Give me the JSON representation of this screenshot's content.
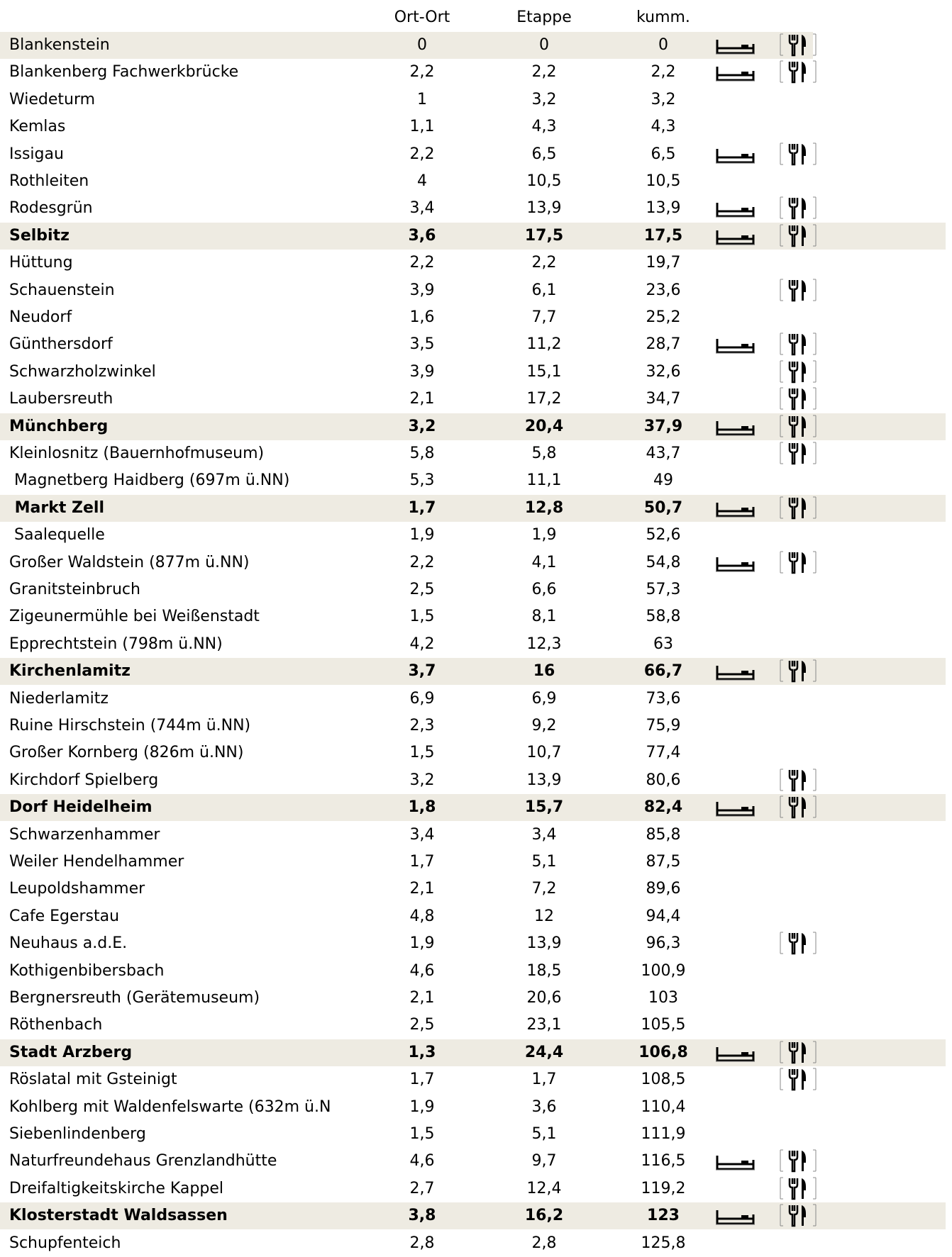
{
  "header": {
    "columns": [
      "Ort-Ort",
      "Etappe",
      "kumm."
    ]
  },
  "table": {
    "rows": [
      {
        "name": "Blankenstein",
        "ort_ort": "0",
        "etappe": "0",
        "kumm": "0",
        "highlight": true,
        "bold": false,
        "bed": true,
        "food": true
      },
      {
        "name": "Blankenberg Fachwerkbrücke",
        "ort_ort": "2,2",
        "etappe": "2,2",
        "kumm": "2,2",
        "highlight": false,
        "bold": false,
        "bed": true,
        "food": true
      },
      {
        "name": "Wiedeturm",
        "ort_ort": "1",
        "etappe": "3,2",
        "kumm": "3,2",
        "highlight": false,
        "bold": false,
        "bed": false,
        "food": false
      },
      {
        "name": "Kemlas",
        "ort_ort": "1,1",
        "etappe": "4,3",
        "kumm": "4,3",
        "highlight": false,
        "bold": false,
        "bed": false,
        "food": false
      },
      {
        "name": "Issigau",
        "ort_ort": "2,2",
        "etappe": "6,5",
        "kumm": "6,5",
        "highlight": false,
        "bold": false,
        "bed": true,
        "food": true
      },
      {
        "name": "Rothleiten",
        "ort_ort": "4",
        "etappe": "10,5",
        "kumm": "10,5",
        "highlight": false,
        "bold": false,
        "bed": false,
        "food": false
      },
      {
        "name": "Rodesgrün",
        "ort_ort": "3,4",
        "etappe": "13,9",
        "kumm": "13,9",
        "highlight": false,
        "bold": false,
        "bed": true,
        "food": true
      },
      {
        "name": "Selbitz",
        "ort_ort": "3,6",
        "etappe": "17,5",
        "kumm": "17,5",
        "highlight": true,
        "bold": true,
        "bed": true,
        "food": true
      },
      {
        "name": "Hüttung",
        "ort_ort": "2,2",
        "etappe": "2,2",
        "kumm": "19,7",
        "highlight": false,
        "bold": false,
        "bed": false,
        "food": false
      },
      {
        "name": "Schauenstein",
        "ort_ort": "3,9",
        "etappe": "6,1",
        "kumm": "23,6",
        "highlight": false,
        "bold": false,
        "bed": false,
        "food": true
      },
      {
        "name": "Neudorf",
        "ort_ort": "1,6",
        "etappe": "7,7",
        "kumm": "25,2",
        "highlight": false,
        "bold": false,
        "bed": false,
        "food": false
      },
      {
        "name": "Günthersdorf",
        "ort_ort": "3,5",
        "etappe": "11,2",
        "kumm": "28,7",
        "highlight": false,
        "bold": false,
        "bed": true,
        "food": true
      },
      {
        "name": "Schwarzholzwinkel",
        "ort_ort": "3,9",
        "etappe": "15,1",
        "kumm": "32,6",
        "highlight": false,
        "bold": false,
        "bed": false,
        "food": true
      },
      {
        "name": "Laubersreuth",
        "ort_ort": "2,1",
        "etappe": "17,2",
        "kumm": "34,7",
        "highlight": false,
        "bold": false,
        "bed": false,
        "food": true
      },
      {
        "name": "Münchberg",
        "ort_ort": "3,2",
        "etappe": "20,4",
        "kumm": "37,9",
        "highlight": true,
        "bold": true,
        "bed": true,
        "food": true
      },
      {
        "name": "Kleinlosnitz (Bauernhofmuseum)",
        "ort_ort": "5,8",
        "etappe": "5,8",
        "kumm": "43,7",
        "highlight": false,
        "bold": false,
        "bed": false,
        "food": true
      },
      {
        "name": " Magnetberg Haidberg (697m ü.NN)",
        "ort_ort": "5,3",
        "etappe": "11,1",
        "kumm": "49",
        "highlight": false,
        "bold": false,
        "bed": false,
        "food": false
      },
      {
        "name": " Markt Zell",
        "ort_ort": "1,7",
        "etappe": "12,8",
        "kumm": "50,7",
        "highlight": true,
        "bold": true,
        "bed": true,
        "food": true
      },
      {
        "name": " Saalequelle",
        "ort_ort": "1,9",
        "etappe": "1,9",
        "kumm": "52,6",
        "highlight": false,
        "bold": false,
        "bed": false,
        "food": false
      },
      {
        "name": "Großer Waldstein (877m ü.NN)",
        "ort_ort": "2,2",
        "etappe": "4,1",
        "kumm": "54,8",
        "highlight": false,
        "bold": false,
        "bed": true,
        "food": true
      },
      {
        "name": "Granitsteinbruch",
        "ort_ort": "2,5",
        "etappe": "6,6",
        "kumm": "57,3",
        "highlight": false,
        "bold": false,
        "bed": false,
        "food": false
      },
      {
        "name": "Zigeunermühle bei Weißenstadt",
        "ort_ort": "1,5",
        "etappe": "8,1",
        "kumm": "58,8",
        "highlight": false,
        "bold": false,
        "bed": false,
        "food": false
      },
      {
        "name": "Epprechtstein (798m ü.NN)",
        "ort_ort": "4,2",
        "etappe": "12,3",
        "kumm": "63",
        "highlight": false,
        "bold": false,
        "bed": false,
        "food": false
      },
      {
        "name": "Kirchenlamitz",
        "ort_ort": "3,7",
        "etappe": "16",
        "kumm": "66,7",
        "highlight": true,
        "bold": true,
        "bed": true,
        "food": true
      },
      {
        "name": "Niederlamitz",
        "ort_ort": "6,9",
        "etappe": "6,9",
        "kumm": "73,6",
        "highlight": false,
        "bold": false,
        "bed": false,
        "food": false
      },
      {
        "name": "Ruine Hirschstein (744m ü.NN)",
        "ort_ort": "2,3",
        "etappe": "9,2",
        "kumm": "75,9",
        "highlight": false,
        "bold": false,
        "bed": false,
        "food": false
      },
      {
        "name": "Großer Kornberg (826m ü.NN)",
        "ort_ort": "1,5",
        "etappe": "10,7",
        "kumm": "77,4",
        "highlight": false,
        "bold": false,
        "bed": false,
        "food": false
      },
      {
        "name": "Kirchdorf Spielberg",
        "ort_ort": "3,2",
        "etappe": "13,9",
        "kumm": "80,6",
        "highlight": false,
        "bold": false,
        "bed": false,
        "food": true
      },
      {
        "name": "Dorf Heidelheim",
        "ort_ort": "1,8",
        "etappe": "15,7",
        "kumm": "82,4",
        "highlight": true,
        "bold": true,
        "bed": true,
        "food": true
      },
      {
        "name": "Schwarzenhammer",
        "ort_ort": "3,4",
        "etappe": "3,4",
        "kumm": "85,8",
        "highlight": false,
        "bold": false,
        "bed": false,
        "food": false
      },
      {
        "name": "Weiler Hendelhammer",
        "ort_ort": "1,7",
        "etappe": "5,1",
        "kumm": "87,5",
        "highlight": false,
        "bold": false,
        "bed": false,
        "food": false
      },
      {
        "name": "Leupoldshammer",
        "ort_ort": "2,1",
        "etappe": "7,2",
        "kumm": "89,6",
        "highlight": false,
        "bold": false,
        "bed": false,
        "food": false
      },
      {
        "name": "Cafe Egerstau",
        "ort_ort": "4,8",
        "etappe": "12",
        "kumm": "94,4",
        "highlight": false,
        "bold": false,
        "bed": false,
        "food": false
      },
      {
        "name": "Neuhaus a.d.E.",
        "ort_ort": "1,9",
        "etappe": "13,9",
        "kumm": "96,3",
        "highlight": false,
        "bold": false,
        "bed": false,
        "food": true
      },
      {
        "name": "Kothigenbibersbach",
        "ort_ort": "4,6",
        "etappe": "18,5",
        "kumm": "100,9",
        "highlight": false,
        "bold": false,
        "bed": false,
        "food": false
      },
      {
        "name": "Bergnersreuth (Gerätemuseum)",
        "ort_ort": "2,1",
        "etappe": "20,6",
        "kumm": "103",
        "highlight": false,
        "bold": false,
        "bed": false,
        "food": false
      },
      {
        "name": "Röthenbach",
        "ort_ort": "2,5",
        "etappe": "23,1",
        "kumm": "105,5",
        "highlight": false,
        "bold": false,
        "bed": false,
        "food": false
      },
      {
        "name": "Stadt Arzberg",
        "ort_ort": "1,3",
        "etappe": "24,4",
        "kumm": "106,8",
        "highlight": true,
        "bold": true,
        "bed": true,
        "food": true
      },
      {
        "name": "Röslatal mit Gsteinigt",
        "ort_ort": "1,7",
        "etappe": "1,7",
        "kumm": "108,5",
        "highlight": false,
        "bold": false,
        "bed": false,
        "food": true
      },
      {
        "name": "Kohlberg mit Waldenfelswarte (632m ü.N",
        "ort_ort": "1,9",
        "etappe": "3,6",
        "kumm": "110,4",
        "highlight": false,
        "bold": false,
        "bed": false,
        "food": false
      },
      {
        "name": "Siebenlindenberg",
        "ort_ort": "1,5",
        "etappe": "5,1",
        "kumm": "111,9",
        "highlight": false,
        "bold": false,
        "bed": false,
        "food": false
      },
      {
        "name": "Naturfreundehaus Grenzlandhütte",
        "ort_ort": "4,6",
        "etappe": "9,7",
        "kumm": "116,5",
        "highlight": false,
        "bold": false,
        "bed": true,
        "food": true
      },
      {
        "name": "Dreifaltigkeitskirche Kappel",
        "ort_ort": "2,7",
        "etappe": "12,4",
        "kumm": "119,2",
        "highlight": false,
        "bold": false,
        "bed": false,
        "food": true
      },
      {
        "name": "Klosterstadt Waldsassen",
        "ort_ort": "3,8",
        "etappe": "16,2",
        "kumm": "123",
        "highlight": true,
        "bold": true,
        "bed": true,
        "food": true
      },
      {
        "name": "Schupfenteich",
        "ort_ort": "2,8",
        "etappe": "2,8",
        "kumm": "125,8",
        "highlight": false,
        "bold": false,
        "bed": false,
        "food": false
      }
    ]
  }
}
